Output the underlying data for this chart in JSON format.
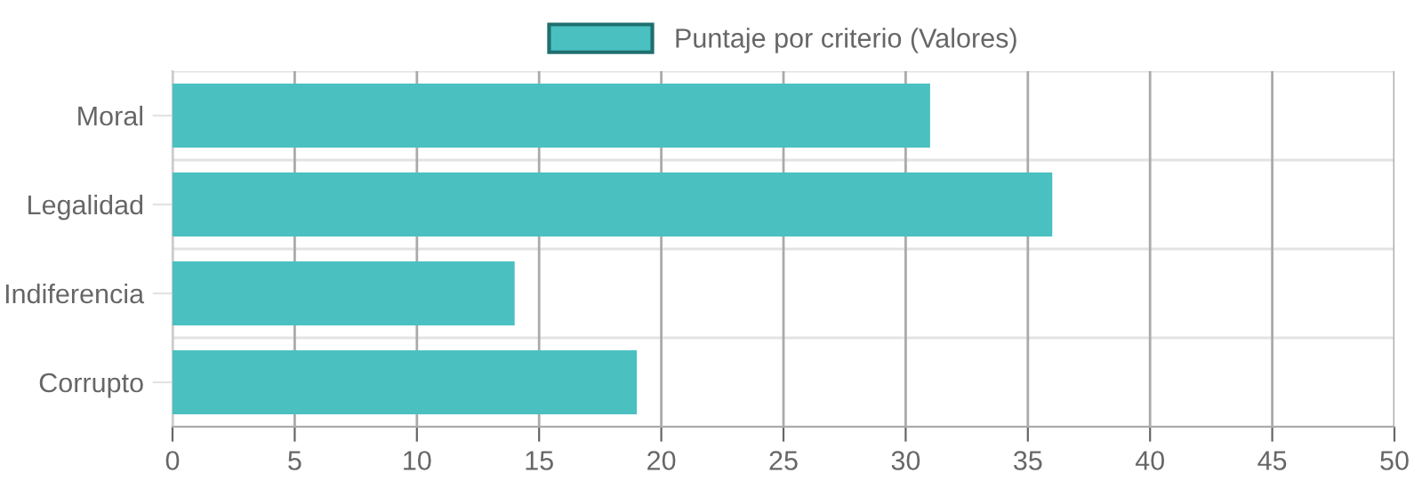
{
  "chart_data": {
    "type": "bar",
    "orientation": "horizontal",
    "categories": [
      "Moral",
      "Legalidad",
      "Indiferencia",
      "Corrupto"
    ],
    "series": [
      {
        "name": "Puntaje por criterio (Valores)",
        "color": "#4bc0c0",
        "values": [
          31,
          36,
          14,
          19
        ]
      }
    ],
    "xlim": [
      0,
      50
    ],
    "xticks": [
      0,
      5,
      10,
      15,
      20,
      25,
      30,
      35,
      40,
      45,
      50
    ],
    "grid": true,
    "legend": "top"
  }
}
